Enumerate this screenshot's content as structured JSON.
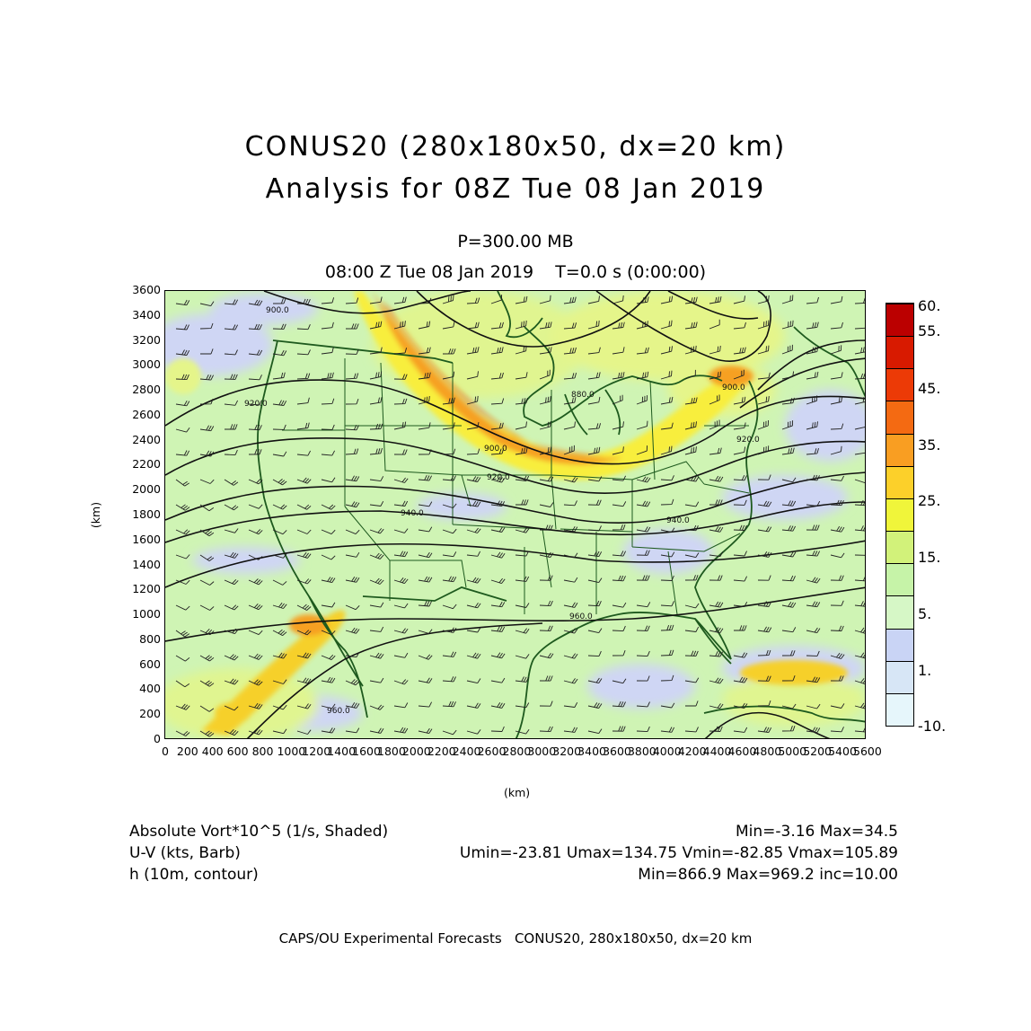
{
  "header": {
    "title_line1": "CONUS20 (280x180x50, dx=20 km)",
    "title_line2": "Analysis for 08Z Tue 08 Jan 2019",
    "level": "P=300.00 MB",
    "valid_time": "08:00 Z Tue 08 Jan 2019    T=0.0 s (0:00:00)"
  },
  "axes": {
    "x_label": "(km)",
    "y_label": "(km)",
    "x_ticks": [
      "0",
      "200",
      "400",
      "600",
      "800",
      "1000",
      "1200",
      "1400",
      "1600",
      "1800",
      "2000",
      "2200",
      "2400",
      "2600",
      "2800",
      "3000",
      "3200",
      "3400",
      "3600",
      "3800",
      "4000",
      "4200",
      "4400",
      "4600",
      "4800",
      "5000",
      "5200",
      "5400",
      "5600"
    ],
    "y_ticks": [
      "0",
      "200",
      "400",
      "600",
      "800",
      "1000",
      "1200",
      "1400",
      "1600",
      "1800",
      "2000",
      "2200",
      "2400",
      "2600",
      "2800",
      "3000",
      "3200",
      "3400",
      "3600"
    ],
    "x_range": [
      0,
      5600
    ],
    "y_range": [
      0,
      3600
    ]
  },
  "contour_labels": [
    "900.0",
    "920.0",
    "880.0",
    "900.0",
    "920.0",
    "940.0",
    "940.0",
    "960.0",
    "960.0",
    "900.0",
    "920.0"
  ],
  "colorbar": {
    "labels": [
      "60.",
      "55.",
      "45.",
      "35.",
      "25.",
      "15.",
      "5.",
      "1.",
      "-10."
    ],
    "colors": [
      "#bb0000",
      "#d81a00",
      "#ec3a06",
      "#f46a12",
      "#f99e22",
      "#fcd02a",
      "#f0f53a",
      "#d2f27a",
      "#c6f3a8",
      "#d6f7c6",
      "#c9d4f5",
      "#d7e6f6",
      "#e6f6fb"
    ]
  },
  "legend": {
    "row1_left": "Absolute Vort*10^5 (1/s, Shaded)",
    "row1_right": "Min=-3.16  Max=34.5",
    "row2_left": "U-V (kts, Barb)",
    "row2_right": "Umin=-23.81 Umax=134.75 Vmin=-82.85 Vmax=105.89",
    "row3_left": "h (10m, contour)",
    "row3_right": "Min=866.9  Max=969.2  inc=10.00"
  },
  "footer": "CAPS/OU Experimental Forecasts   CONUS20, 280x180x50, dx=20 km"
}
